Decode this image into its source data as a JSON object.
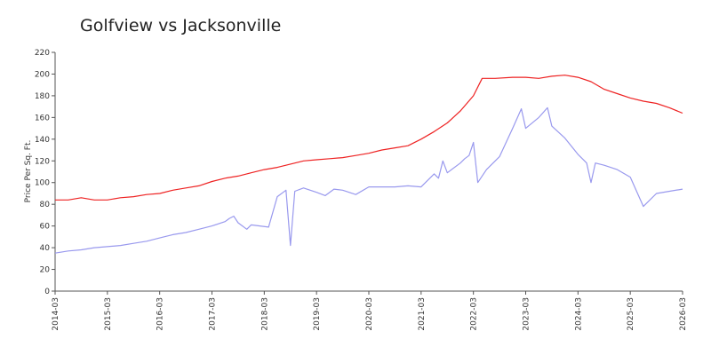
{
  "chart_data": {
    "type": "line",
    "title": "Golfview vs Jacksonville",
    "xlabel": "",
    "ylabel": "Price Per Sq. Ft.",
    "ylim": [
      0,
      220
    ],
    "yticks": [
      0,
      20,
      40,
      60,
      80,
      100,
      120,
      140,
      160,
      180,
      200,
      220
    ],
    "xticks": [
      "2014-03",
      "2015-03",
      "2016-03",
      "2017-03",
      "2018-03",
      "2019-03",
      "2020-03",
      "2021-03",
      "2022-03",
      "2023-03",
      "2024-03",
      "2025-03",
      "2026-03"
    ],
    "grid": false,
    "legend": "none",
    "series": [
      {
        "color": "#ee2222",
        "points": [
          [
            "2014-03",
            84
          ],
          [
            "2014-06",
            84
          ],
          [
            "2014-09",
            86
          ],
          [
            "2014-12",
            84
          ],
          [
            "2015-03",
            84
          ],
          [
            "2015-06",
            86
          ],
          [
            "2015-09",
            87
          ],
          [
            "2015-12",
            89
          ],
          [
            "2016-03",
            90
          ],
          [
            "2016-06",
            93
          ],
          [
            "2016-09",
            95
          ],
          [
            "2016-12",
            97
          ],
          [
            "2017-03",
            101
          ],
          [
            "2017-06",
            104
          ],
          [
            "2017-09",
            106
          ],
          [
            "2017-12",
            109
          ],
          [
            "2018-03",
            112
          ],
          [
            "2018-06",
            114
          ],
          [
            "2018-09",
            117
          ],
          [
            "2018-12",
            120
          ],
          [
            "2019-03",
            121
          ],
          [
            "2019-06",
            122
          ],
          [
            "2019-09",
            123
          ],
          [
            "2019-12",
            125
          ],
          [
            "2020-03",
            127
          ],
          [
            "2020-06",
            130
          ],
          [
            "2020-09",
            132
          ],
          [
            "2020-12",
            134
          ],
          [
            "2021-03",
            140
          ],
          [
            "2021-06",
            147
          ],
          [
            "2021-09",
            155
          ],
          [
            "2021-12",
            166
          ],
          [
            "2022-03",
            180
          ],
          [
            "2022-05",
            196
          ],
          [
            "2022-08",
            196
          ],
          [
            "2022-12",
            197
          ],
          [
            "2023-03",
            197
          ],
          [
            "2023-06",
            196
          ],
          [
            "2023-09",
            198
          ],
          [
            "2023-12",
            199
          ],
          [
            "2024-03",
            197
          ],
          [
            "2024-06",
            193
          ],
          [
            "2024-09",
            186
          ],
          [
            "2024-12",
            182
          ],
          [
            "2025-03",
            178
          ],
          [
            "2025-06",
            175
          ],
          [
            "2025-09",
            173
          ],
          [
            "2025-12",
            169
          ],
          [
            "2026-03",
            164
          ]
        ]
      },
      {
        "color": "#9999ee",
        "points": [
          [
            "2014-03",
            35
          ],
          [
            "2014-06",
            37
          ],
          [
            "2014-09",
            38
          ],
          [
            "2014-12",
            40
          ],
          [
            "2015-03",
            41
          ],
          [
            "2015-06",
            42
          ],
          [
            "2015-09",
            44
          ],
          [
            "2015-12",
            46
          ],
          [
            "2016-03",
            49
          ],
          [
            "2016-06",
            52
          ],
          [
            "2016-09",
            54
          ],
          [
            "2016-12",
            57
          ],
          [
            "2017-03",
            60
          ],
          [
            "2017-06",
            64
          ],
          [
            "2017-07",
            67
          ],
          [
            "2017-08",
            69
          ],
          [
            "2017-09",
            63
          ],
          [
            "2017-11",
            57
          ],
          [
            "2017-12",
            61
          ],
          [
            "2018-02",
            60
          ],
          [
            "2018-04",
            59
          ],
          [
            "2018-06",
            87
          ],
          [
            "2018-08",
            93
          ],
          [
            "2018-09",
            42
          ],
          [
            "2018-10",
            92
          ],
          [
            "2018-12",
            95
          ],
          [
            "2019-03",
            91
          ],
          [
            "2019-05",
            88
          ],
          [
            "2019-07",
            94
          ],
          [
            "2019-09",
            93
          ],
          [
            "2019-12",
            89
          ],
          [
            "2020-03",
            96
          ],
          [
            "2020-06",
            96
          ],
          [
            "2020-09",
            96
          ],
          [
            "2020-12",
            97
          ],
          [
            "2021-03",
            96
          ],
          [
            "2021-06",
            108
          ],
          [
            "2021-07",
            104
          ],
          [
            "2021-08",
            120
          ],
          [
            "2021-09",
            109
          ],
          [
            "2021-12",
            118
          ],
          [
            "2022-01",
            122
          ],
          [
            "2022-02",
            125
          ],
          [
            "2022-03",
            137
          ],
          [
            "2022-04",
            100
          ],
          [
            "2022-06",
            112
          ],
          [
            "2022-09",
            124
          ],
          [
            "2022-12",
            150
          ],
          [
            "2023-02",
            168
          ],
          [
            "2023-03",
            150
          ],
          [
            "2023-06",
            160
          ],
          [
            "2023-08",
            169
          ],
          [
            "2023-09",
            152
          ],
          [
            "2023-12",
            141
          ],
          [
            "2024-03",
            126
          ],
          [
            "2024-05",
            118
          ],
          [
            "2024-06",
            100
          ],
          [
            "2024-07",
            118
          ],
          [
            "2024-09",
            116
          ],
          [
            "2024-12",
            112
          ],
          [
            "2025-03",
            105
          ],
          [
            "2025-06",
            78
          ],
          [
            "2025-09",
            90
          ],
          [
            "2025-12",
            92
          ],
          [
            "2026-03",
            94
          ]
        ]
      }
    ]
  }
}
